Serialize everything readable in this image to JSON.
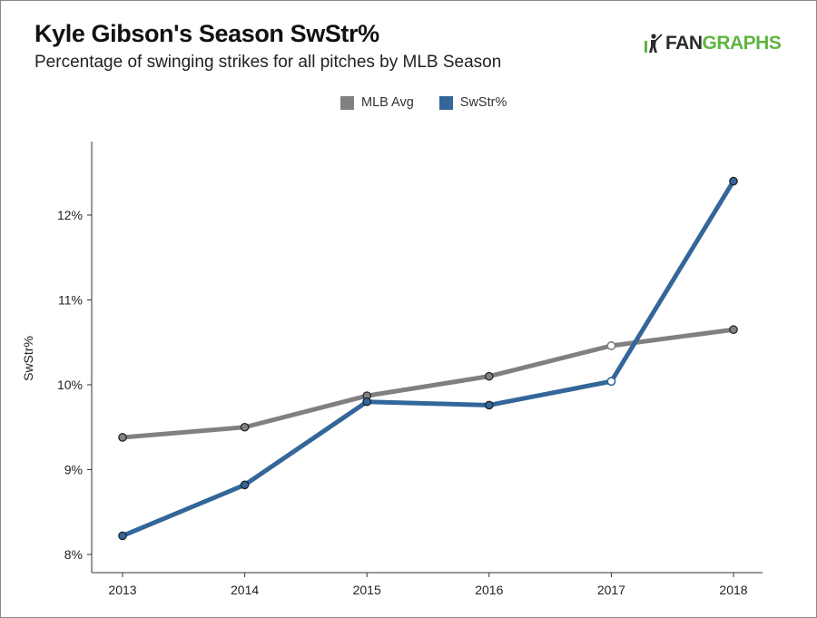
{
  "header": {
    "title": "Kyle Gibson's Season SwStr%",
    "subtitle": "Percentage of swinging strikes for all pitches by MLB Season"
  },
  "logo": {
    "text_dark": "FAN",
    "text_green": "GRAPHS",
    "icon": "fangraphs-batter-icon",
    "color_dark": "#2b2b2b",
    "color_green": "#5fb541"
  },
  "chart_data": {
    "type": "line",
    "title": "Kyle Gibson's Season SwStr%",
    "subtitle": "Percentage of swinging strikes for all pitches by MLB Season",
    "xlabel": "",
    "ylabel": "SwStr%",
    "categories": [
      "2013",
      "2014",
      "2015",
      "2016",
      "2017",
      "2018"
    ],
    "ylim": [
      7.8,
      12.8
    ],
    "yticks": [
      8,
      9,
      10,
      11,
      12
    ],
    "ytick_labels": [
      "8%",
      "9%",
      "10%",
      "11%",
      "12%"
    ],
    "grid": false,
    "legend_position": "top-center",
    "series": [
      {
        "name": "MLB Avg",
        "color": "#808080",
        "values": [
          9.38,
          9.5,
          9.87,
          10.1,
          10.46,
          10.65
        ],
        "hollow_points": [
          4
        ]
      },
      {
        "name": "SwStr%",
        "color": "#336699",
        "values": [
          8.22,
          8.82,
          9.8,
          9.76,
          10.04,
          12.4
        ],
        "hollow_points": [
          4
        ]
      }
    ]
  }
}
